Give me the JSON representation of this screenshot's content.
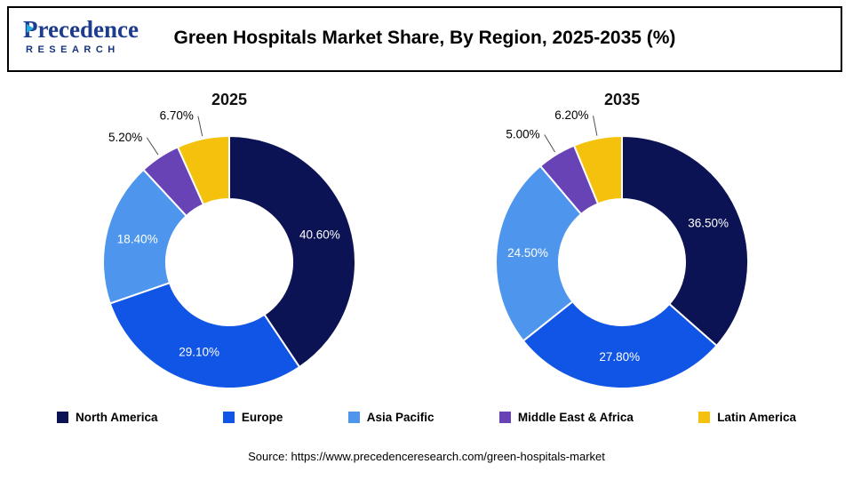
{
  "logo": {
    "name": "Precedence",
    "subtitle": "RESEARCH"
  },
  "header": {
    "title": "Green Hospitals Market Share, By Region, 2025-2035 (%)"
  },
  "chart_data": {
    "type": "pie",
    "subtype": "donut",
    "title": "Green Hospitals Market Share, By Region, 2025-2035 (%)",
    "categories": [
      "North America",
      "Europe",
      "Asia Pacific",
      "Middle East & Africa",
      "Latin America"
    ],
    "colors": [
      "#0b1354",
      "#1155e6",
      "#4e96ed",
      "#6843b5",
      "#f4c20d"
    ],
    "charts": [
      {
        "label": "2025",
        "values": [
          40.6,
          29.1,
          18.4,
          5.2,
          6.7
        ],
        "value_labels": [
          "40.60%",
          "29.10%",
          "18.40%",
          "5.20%",
          "6.70%"
        ]
      },
      {
        "label": "2035",
        "values": [
          36.5,
          27.8,
          24.5,
          5.0,
          6.2
        ],
        "value_labels": [
          "36.50%",
          "27.80%",
          "24.50%",
          "5.00%",
          "6.20%"
        ]
      }
    ],
    "legend_position": "bottom",
    "legend": [
      "North America",
      "Europe",
      "Asia Pacific",
      "Middle East & Africa",
      "Latin America"
    ]
  },
  "footer": {
    "source": "Source: https://www.precedenceresearch.com/green-hospitals-market"
  }
}
